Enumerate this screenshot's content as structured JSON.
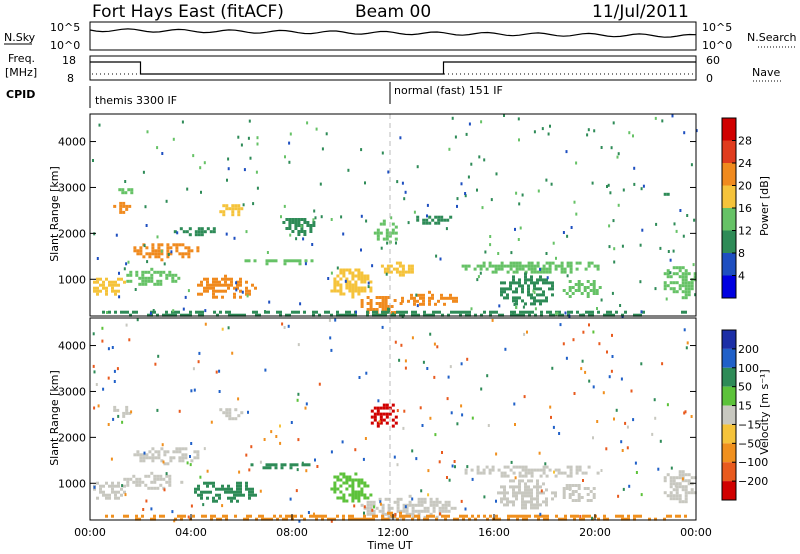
{
  "header": {
    "title": "Fort Hays East (fitACF)",
    "beam": "Beam 00",
    "date": "11/Jul/2011"
  },
  "param_panels": {
    "nsky_label": "N.Sky",
    "nsearch_label": "N.Search",
    "nsky_ticks": [
      "10^5",
      "10^0"
    ],
    "nsearch_ticks": [
      "10^5",
      "10^0"
    ],
    "freq_label": "Freq.",
    "freq_unit": "[MHz]",
    "freq_ticks": [
      "18",
      "8"
    ],
    "nave_label": "Nave",
    "nave_ticks": [
      "60",
      "0"
    ],
    "cpid_label": "CPID",
    "cpid_modes": [
      "themis 3300 IF",
      "normal (fast) 151 IF"
    ]
  },
  "chart_data": [
    {
      "type": "heatmap",
      "name": "power",
      "ylabel": "Slant Range [km]",
      "ylim": [
        200,
        4600
      ],
      "y_ticks": [
        "1000",
        "2000",
        "3000",
        "4000"
      ],
      "xlim_hours": [
        0,
        24
      ],
      "colorbar": {
        "label": "Power [dB]",
        "tick_labels": [
          "4",
          "8",
          "12",
          "16",
          "20",
          "24",
          "28"
        ],
        "tick_values": [
          4,
          8,
          12,
          16,
          20,
          24,
          28
        ],
        "range": [
          0,
          32
        ],
        "colors": [
          "#0000e0",
          "#1e4fc0",
          "#2e8b57",
          "#66c266",
          "#f5c33b",
          "#f08a1e",
          "#e03c1e",
          "#d00000"
        ]
      },
      "patches": [
        {
          "t0": 0.0,
          "t1": 1.4,
          "r0": 650,
          "r1": 1100,
          "level": 18
        },
        {
          "t0": 0.8,
          "t1": 1.6,
          "r0": 2450,
          "r1": 2750,
          "level": 22
        },
        {
          "t0": 1.0,
          "t1": 1.8,
          "r0": 2900,
          "r1": 3050,
          "level": 14
        },
        {
          "t0": 1.6,
          "t1": 4.4,
          "r0": 1450,
          "r1": 1850,
          "level": 21
        },
        {
          "t0": 1.2,
          "t1": 3.6,
          "r0": 900,
          "r1": 1250,
          "level": 14
        },
        {
          "t0": 4.0,
          "t1": 6.6,
          "r0": 600,
          "r1": 1100,
          "level": 20
        },
        {
          "t0": 5.0,
          "t1": 6.0,
          "r0": 2400,
          "r1": 2700,
          "level": 16
        },
        {
          "t0": 3.2,
          "t1": 5.0,
          "r0": 1950,
          "r1": 2200,
          "level": 10
        },
        {
          "t0": 6.0,
          "t1": 8.8,
          "r0": 1350,
          "r1": 1500,
          "level": 14
        },
        {
          "t0": 9.4,
          "t1": 11.2,
          "r0": 600,
          "r1": 1300,
          "level": 17
        },
        {
          "t0": 10.6,
          "t1": 12.4,
          "r0": 250,
          "r1": 700,
          "level": 22
        },
        {
          "t0": 11.4,
          "t1": 12.8,
          "r0": 1100,
          "r1": 1450,
          "level": 17
        },
        {
          "t0": 11.0,
          "t1": 12.2,
          "r0": 1800,
          "r1": 2300,
          "level": 13
        },
        {
          "t0": 12.2,
          "t1": 14.6,
          "r0": 450,
          "r1": 750,
          "level": 21
        },
        {
          "t0": 14.6,
          "t1": 20.4,
          "r0": 1150,
          "r1": 1450,
          "level": 12
        },
        {
          "t0": 16.0,
          "t1": 18.4,
          "r0": 450,
          "r1": 1150,
          "level": 10
        },
        {
          "t0": 18.6,
          "t1": 20.2,
          "r0": 600,
          "r1": 1050,
          "level": 13
        },
        {
          "t0": 22.6,
          "t1": 24.0,
          "r0": 600,
          "r1": 1350,
          "level": 15
        },
        {
          "t0": 0.0,
          "t1": 24.0,
          "r0": 200,
          "r1": 380,
          "level": 9
        },
        {
          "t0": 7.5,
          "t1": 9.0,
          "r0": 2000,
          "r1": 2400,
          "level": 8
        },
        {
          "t0": 12.8,
          "t1": 14.4,
          "r0": 2200,
          "r1": 2450,
          "level": 9
        },
        {
          "t0": 22.6,
          "t1": 23.0,
          "r0": 2800,
          "r1": 2950,
          "level": 10
        }
      ]
    },
    {
      "type": "heatmap",
      "name": "velocity",
      "ylabel": "Slant Range [km]",
      "ylim": [
        200,
        4600
      ],
      "y_ticks": [
        "1000",
        "2000",
        "3000",
        "4000"
      ],
      "xlim_hours": [
        0,
        24
      ],
      "xlabel": "Time UT",
      "x_ticks": [
        "00:00",
        "04:00",
        "08:00",
        "12:00",
        "16:00",
        "20:00",
        "00:00"
      ],
      "x_tick_hours": [
        0,
        4,
        8,
        12,
        16,
        20,
        24
      ],
      "colorbar": {
        "label": "Velocity [m s⁻¹]",
        "tick_labels": [
          "200",
          "100",
          "50",
          "15",
          "−15",
          "−50",
          "−100",
          "−200"
        ],
        "colors": [
          "#1c2ea6",
          "#2060c8",
          "#2e8b57",
          "#5cc23a",
          "#c8c8c0",
          "#f5c33b",
          "#f0901e",
          "#e85a1e",
          "#d00000"
        ]
      },
      "patches": [
        {
          "t0": 0.0,
          "t1": 1.4,
          "r0": 650,
          "r1": 1100,
          "v": 0
        },
        {
          "t0": 0.8,
          "t1": 1.6,
          "r0": 2450,
          "r1": 2750,
          "v": 0
        },
        {
          "t0": 1.6,
          "t1": 4.4,
          "r0": 1450,
          "r1": 1850,
          "v": 0
        },
        {
          "t0": 4.0,
          "t1": 6.6,
          "r0": 600,
          "r1": 1100,
          "v": 40
        },
        {
          "t0": 5.0,
          "t1": 6.0,
          "r0": 2400,
          "r1": 2700,
          "v": 0
        },
        {
          "t0": 6.0,
          "t1": 8.8,
          "r0": 1350,
          "r1": 1500,
          "v": 40
        },
        {
          "t0": 9.4,
          "t1": 11.2,
          "r0": 600,
          "r1": 1300,
          "v": 30
        },
        {
          "t0": 10.6,
          "t1": 14.6,
          "r0": 250,
          "r1": 750,
          "v": 0
        },
        {
          "t0": 11.0,
          "t1": 12.2,
          "r0": 2200,
          "r1": 2800,
          "v": -150
        },
        {
          "t0": 14.6,
          "t1": 20.4,
          "r0": 1150,
          "r1": 1450,
          "v": 0
        },
        {
          "t0": 16.0,
          "t1": 18.4,
          "r0": 450,
          "r1": 1150,
          "v": 0
        },
        {
          "t0": 18.6,
          "t1": 20.2,
          "r0": 600,
          "r1": 1050,
          "v": 0
        },
        {
          "t0": 22.6,
          "t1": 24.0,
          "r0": 600,
          "r1": 1350,
          "v": 0
        },
        {
          "t0": 0.0,
          "t1": 24.0,
          "r0": 200,
          "r1": 380,
          "v": -40
        },
        {
          "t0": 1.2,
          "t1": 3.6,
          "r0": 900,
          "r1": 1250,
          "v": 0
        }
      ]
    }
  ]
}
